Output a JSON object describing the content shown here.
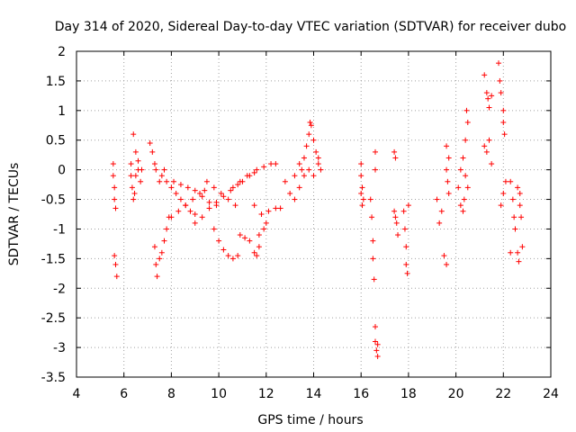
{
  "chart_data": {
    "type": "scatter",
    "title": "Day 314 of 2020, Sidereal Day-to-day VTEC variation (SDTVAR) for receiver dubo",
    "xlabel": "GPS time / hours",
    "ylabel": "SDTVAR / TECUs",
    "xlim": [
      4,
      24
    ],
    "ylim": [
      -3.5,
      2
    ],
    "xticks": [
      4,
      6,
      8,
      10,
      12,
      14,
      16,
      18,
      20,
      22,
      24
    ],
    "yticks": [
      -3.5,
      -3,
      -2.5,
      -2,
      -1.5,
      -1,
      -0.5,
      0,
      0.5,
      1,
      1.5,
      2
    ],
    "xtick_labels": [
      "4",
      "6",
      "8",
      "10",
      "12",
      "14",
      "16",
      "18",
      "20",
      "22",
      "24"
    ],
    "ytick_labels": [
      "-3.5",
      "-3",
      "-2.5",
      "-2",
      "-1.5",
      "-1",
      "-0.5",
      "0",
      "0.5",
      "1",
      "1.5",
      "2"
    ],
    "grid": true,
    "marker": "+",
    "color": "#ff0000",
    "series": [
      {
        "name": "SDTVAR",
        "points": [
          [
            5.55,
            0.1
          ],
          [
            5.55,
            -0.1
          ],
          [
            5.6,
            -0.3
          ],
          [
            5.6,
            -0.5
          ],
          [
            5.65,
            -0.65
          ],
          [
            5.6,
            -1.45
          ],
          [
            5.65,
            -1.6
          ],
          [
            5.7,
            -1.8
          ],
          [
            6.3,
            0.1
          ],
          [
            6.3,
            -0.1
          ],
          [
            6.35,
            -0.3
          ],
          [
            6.4,
            -0.5
          ],
          [
            6.4,
            0.6
          ],
          [
            6.5,
            0.3
          ],
          [
            6.6,
            0.0
          ],
          [
            6.7,
            -0.2
          ],
          [
            6.45,
            -0.4
          ],
          [
            6.5,
            -0.1
          ],
          [
            6.6,
            0.15
          ],
          [
            6.75,
            0.0
          ],
          [
            7.1,
            0.45
          ],
          [
            7.2,
            0.3
          ],
          [
            7.3,
            0.1
          ],
          [
            7.35,
            0.0
          ],
          [
            7.5,
            -0.2
          ],
          [
            7.6,
            -0.1
          ],
          [
            7.7,
            0.0
          ],
          [
            7.8,
            -0.2
          ],
          [
            7.3,
            -1.3
          ],
          [
            7.35,
            -1.6
          ],
          [
            7.4,
            -1.8
          ],
          [
            7.5,
            -1.5
          ],
          [
            7.6,
            -1.4
          ],
          [
            7.7,
            -1.2
          ],
          [
            7.8,
            -1.0
          ],
          [
            7.9,
            -0.8
          ],
          [
            8.0,
            -0.3
          ],
          [
            8.2,
            -0.4
          ],
          [
            8.4,
            -0.5
          ],
          [
            8.6,
            -0.6
          ],
          [
            8.8,
            -0.7
          ],
          [
            9.0,
            -0.75
          ],
          [
            8.0,
            -0.8
          ],
          [
            8.3,
            -0.7
          ],
          [
            8.6,
            -0.6
          ],
          [
            8.9,
            -0.5
          ],
          [
            9.2,
            -0.4
          ],
          [
            9.4,
            -0.35
          ],
          [
            8.1,
            -0.2
          ],
          [
            8.4,
            -0.25
          ],
          [
            8.7,
            -0.3
          ],
          [
            9.0,
            -0.35
          ],
          [
            9.3,
            -0.45
          ],
          [
            9.6,
            -0.55
          ],
          [
            9.9,
            -0.6
          ],
          [
            9.5,
            -0.2
          ],
          [
            9.8,
            -0.3
          ],
          [
            10.1,
            -0.4
          ],
          [
            10.4,
            -0.5
          ],
          [
            10.7,
            -0.6
          ],
          [
            9.0,
            -0.9
          ],
          [
            9.3,
            -0.8
          ],
          [
            9.6,
            -0.65
          ],
          [
            9.9,
            -0.55
          ],
          [
            10.2,
            -0.45
          ],
          [
            10.5,
            -0.35
          ],
          [
            10.8,
            -0.25
          ],
          [
            9.8,
            -1.0
          ],
          [
            10.0,
            -1.2
          ],
          [
            10.2,
            -1.35
          ],
          [
            10.4,
            -1.45
          ],
          [
            10.6,
            -1.5
          ],
          [
            10.8,
            -1.45
          ],
          [
            10.9,
            -1.1
          ],
          [
            11.1,
            -1.15
          ],
          [
            11.3,
            -1.2
          ],
          [
            11.5,
            -1.4
          ],
          [
            11.6,
            -1.45
          ],
          [
            11.7,
            -1.3
          ],
          [
            11.0,
            -0.2
          ],
          [
            11.3,
            -0.1
          ],
          [
            11.6,
            0.0
          ],
          [
            11.9,
            0.05
          ],
          [
            12.2,
            0.1
          ],
          [
            12.4,
            0.1
          ],
          [
            10.6,
            -0.3
          ],
          [
            10.9,
            -0.2
          ],
          [
            11.2,
            -0.1
          ],
          [
            11.5,
            -0.05
          ],
          [
            11.5,
            -0.6
          ],
          [
            11.8,
            -0.75
          ],
          [
            12.1,
            -0.7
          ],
          [
            12.4,
            -0.65
          ],
          [
            12.6,
            -0.65
          ],
          [
            11.9,
            -1.0
          ],
          [
            12.0,
            -0.9
          ],
          [
            11.7,
            -1.1
          ],
          [
            12.8,
            -0.2
          ],
          [
            13.0,
            -0.4
          ],
          [
            13.2,
            -0.5
          ],
          [
            13.4,
            -0.3
          ],
          [
            13.5,
            0.0
          ],
          [
            13.6,
            0.2
          ],
          [
            13.7,
            0.4
          ],
          [
            13.8,
            0.6
          ],
          [
            13.85,
            0.8
          ],
          [
            13.9,
            0.75
          ],
          [
            14.0,
            0.5
          ],
          [
            14.1,
            0.3
          ],
          [
            14.2,
            0.1
          ],
          [
            14.3,
            0.0
          ],
          [
            13.2,
            -0.1
          ],
          [
            13.4,
            0.1
          ],
          [
            13.6,
            -0.1
          ],
          [
            13.8,
            0.0
          ],
          [
            14.0,
            -0.1
          ],
          [
            14.2,
            0.2
          ],
          [
            16.0,
            0.1
          ],
          [
            16.0,
            -0.1
          ],
          [
            16.05,
            -0.3
          ],
          [
            16.1,
            -0.5
          ],
          [
            16.05,
            -0.6
          ],
          [
            16.0,
            -0.4
          ],
          [
            16.4,
            -0.5
          ],
          [
            16.45,
            -0.8
          ],
          [
            16.5,
            -1.2
          ],
          [
            16.5,
            -1.5
          ],
          [
            16.55,
            -1.85
          ],
          [
            16.6,
            0.3
          ],
          [
            16.6,
            0.0
          ],
          [
            16.6,
            -2.65
          ],
          [
            16.6,
            -2.9
          ],
          [
            16.65,
            -3.05
          ],
          [
            16.7,
            -3.15
          ],
          [
            16.7,
            -2.95
          ],
          [
            17.4,
            0.3
          ],
          [
            17.45,
            0.2
          ],
          [
            17.4,
            -0.7
          ],
          [
            17.5,
            -0.9
          ],
          [
            17.55,
            -1.1
          ],
          [
            17.45,
            -0.8
          ],
          [
            17.8,
            -0.7
          ],
          [
            17.85,
            -1.0
          ],
          [
            17.9,
            -1.3
          ],
          [
            17.9,
            -1.6
          ],
          [
            17.95,
            -1.75
          ],
          [
            18.0,
            -0.6
          ],
          [
            19.2,
            -0.5
          ],
          [
            19.3,
            -0.9
          ],
          [
            19.4,
            -0.7
          ],
          [
            19.5,
            -1.45
          ],
          [
            19.6,
            -1.6
          ],
          [
            19.6,
            0.0
          ],
          [
            19.6,
            0.4
          ],
          [
            19.7,
            0.2
          ],
          [
            19.7,
            -0.4
          ],
          [
            19.65,
            -0.2
          ],
          [
            20.1,
            -0.3
          ],
          [
            20.2,
            -0.6
          ],
          [
            20.3,
            -0.7
          ],
          [
            20.2,
            0.0
          ],
          [
            20.3,
            0.2
          ],
          [
            20.4,
            0.5
          ],
          [
            20.45,
            1.0
          ],
          [
            20.5,
            0.8
          ],
          [
            20.4,
            -0.1
          ],
          [
            20.5,
            -0.3
          ],
          [
            20.35,
            -0.5
          ],
          [
            21.2,
            1.6
          ],
          [
            21.3,
            1.3
          ],
          [
            21.35,
            1.2
          ],
          [
            21.4,
            1.05
          ],
          [
            21.5,
            1.25
          ],
          [
            21.3,
            0.3
          ],
          [
            21.4,
            0.5
          ],
          [
            21.5,
            0.1
          ],
          [
            21.2,
            0.4
          ],
          [
            21.8,
            1.8
          ],
          [
            21.85,
            1.5
          ],
          [
            21.9,
            1.3
          ],
          [
            22.0,
            0.8
          ],
          [
            22.05,
            0.6
          ],
          [
            21.9,
            -0.6
          ],
          [
            22.0,
            -0.4
          ],
          [
            22.1,
            -0.2
          ],
          [
            22.0,
            1.0
          ],
          [
            22.3,
            -0.2
          ],
          [
            22.4,
            -0.5
          ],
          [
            22.45,
            -0.8
          ],
          [
            22.5,
            -1.0
          ],
          [
            22.3,
            -1.4
          ],
          [
            22.6,
            -0.3
          ],
          [
            22.7,
            -0.6
          ],
          [
            22.75,
            -0.8
          ],
          [
            22.6,
            -1.4
          ],
          [
            22.65,
            -1.55
          ],
          [
            22.8,
            -1.3
          ],
          [
            22.7,
            -0.4
          ]
        ]
      }
    ]
  }
}
